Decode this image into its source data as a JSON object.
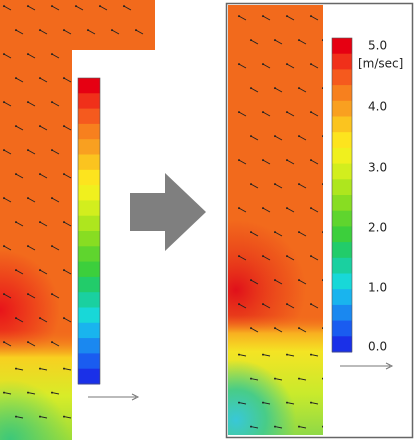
{
  "colorbar": {
    "max_label": "5.0",
    "unit": "[m/sec]",
    "tick_labels": [
      "4.0",
      "3.0",
      "2.0",
      "1.0",
      "0.0"
    ]
  }
}
